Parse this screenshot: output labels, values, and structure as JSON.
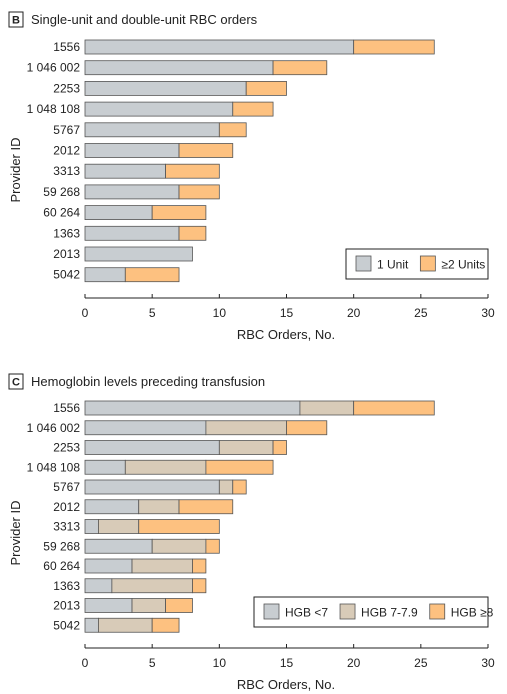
{
  "chart_data": [
    {
      "type": "bar",
      "stacked": true,
      "orientation": "horizontal",
      "panel_letter": "B",
      "title": "Single-unit and double-unit RBC orders",
      "xlabel": "RBC Orders, No.",
      "ylabel": "Provider ID",
      "xlim": [
        0,
        30
      ],
      "xticks": [
        "0",
        "5",
        "10",
        "15",
        "20",
        "25",
        "30"
      ],
      "grid": false,
      "legend_position": "bottom-right",
      "categories": [
        "1556",
        "1046002",
        "2253",
        "1048108",
        "5767",
        "2012",
        "3313",
        "59268",
        "60264",
        "1363",
        "2013",
        "5042"
      ],
      "category_labels": [
        "1556",
        "1 046 002",
        "2253",
        "1 048 108",
        "5767",
        "2012",
        "3313",
        "59 268",
        "60 264",
        "1363",
        "2013",
        "5042"
      ],
      "series": [
        {
          "name": "1 Unit",
          "color": "#c8cdd1",
          "values": [
            20,
            14,
            12,
            11,
            10,
            7,
            6,
            7,
            5,
            7,
            8,
            3
          ]
        },
        {
          "name": "≥2 Units",
          "color": "#fdc180",
          "values": [
            6,
            4,
            3,
            3,
            2,
            4,
            4,
            3,
            4,
            2,
            0,
            4
          ]
        }
      ]
    },
    {
      "type": "bar",
      "stacked": true,
      "orientation": "horizontal",
      "panel_letter": "C",
      "title": "Hemoglobin levels preceding transfusion",
      "xlabel": "RBC Orders, No.",
      "ylabel": "Provider ID",
      "xlim": [
        0,
        30
      ],
      "xticks": [
        "0",
        "5",
        "10",
        "15",
        "20",
        "25",
        "30"
      ],
      "grid": false,
      "legend_position": "bottom-right",
      "categories": [
        "1556",
        "1046002",
        "2253",
        "1048108",
        "5767",
        "2012",
        "3313",
        "59268",
        "60264",
        "1363",
        "2013",
        "5042"
      ],
      "category_labels": [
        "1556",
        "1 046 002",
        "2253",
        "1 048 108",
        "5767",
        "2012",
        "3313",
        "59 268",
        "60 264",
        "1363",
        "2013",
        "5042"
      ],
      "series": [
        {
          "name": "HGB <7",
          "color": "#c8cdd1",
          "values": [
            16,
            9,
            10,
            3,
            10,
            4,
            1,
            5,
            3.5,
            2,
            3.5,
            1
          ]
        },
        {
          "name": "HGB 7-7.9",
          "color": "#d8cbb8",
          "values": [
            4,
            6,
            4,
            6,
            1,
            3,
            3,
            4,
            4.5,
            6,
            2.5,
            4
          ]
        },
        {
          "name": "HGB ≥8",
          "color": "#fdc180",
          "values": [
            6,
            3,
            1,
            5,
            1,
            4,
            6,
            1,
            1,
            1,
            2,
            2
          ]
        }
      ]
    }
  ]
}
